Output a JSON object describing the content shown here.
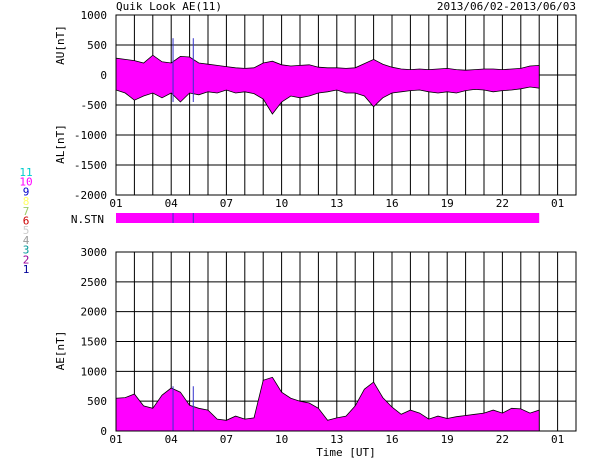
{
  "header": {
    "title": "Quik Look AE(11)",
    "date_range": "2013/06/02-2013/06/03"
  },
  "colors": {
    "fill": "#ff00ff",
    "marker": "#3333cc",
    "grid": "#000000"
  },
  "station_labels": [
    {
      "text": "11",
      "color": "#00cccc"
    },
    {
      "text": "10",
      "color": "#ff00ff"
    },
    {
      "text": "9",
      "color": "#0000cc"
    },
    {
      "text": "8",
      "color": "#ffff66"
    },
    {
      "text": "7",
      "color": "#99cc66"
    },
    {
      "text": "6",
      "color": "#cc0000"
    },
    {
      "text": "5",
      "color": "#cccccc"
    },
    {
      "text": "4",
      "color": "#999999"
    },
    {
      "text": "3",
      "color": "#009999"
    },
    {
      "text": "2",
      "color": "#990099"
    },
    {
      "text": "1",
      "color": "#000099"
    }
  ],
  "nstn": {
    "label": "N.STN",
    "coverage_hours": [
      0,
      23
    ],
    "markers_hours": [
      3.1,
      4.2
    ]
  },
  "chart_data": [
    {
      "type": "area",
      "panel": "AU/AL",
      "ylabel_upper": "AU[nT]",
      "ylabel_lower": "AL[nT]",
      "ylim": [
        -2000,
        1000
      ],
      "yticks": [
        1000,
        500,
        0,
        -500,
        -1000,
        -1500,
        -2000
      ],
      "xlim": [
        0,
        25
      ],
      "xticks": [
        0,
        3,
        6,
        9,
        12,
        15,
        18,
        21,
        24
      ],
      "xticklabels": [
        "01",
        "04",
        "07",
        "10",
        "13",
        "16",
        "19",
        "22",
        "01"
      ],
      "grid": true,
      "x_hours": [
        0,
        0.5,
        1,
        1.5,
        2,
        2.5,
        3,
        3.5,
        4,
        4.5,
        5,
        5.5,
        6,
        6.5,
        7,
        7.5,
        8,
        8.5,
        9,
        9.5,
        10,
        10.5,
        11,
        11.5,
        12,
        12.5,
        13,
        13.5,
        14,
        14.5,
        15,
        15.5,
        16,
        16.5,
        17,
        17.5,
        18,
        18.5,
        19,
        19.5,
        20,
        20.5,
        21,
        21.5,
        22,
        22.5,
        23
      ],
      "au": [
        280,
        260,
        240,
        200,
        330,
        220,
        200,
        310,
        300,
        200,
        180,
        160,
        140,
        120,
        110,
        120,
        200,
        230,
        170,
        150,
        160,
        170,
        130,
        120,
        120,
        110,
        120,
        190,
        260,
        180,
        130,
        100,
        90,
        100,
        90,
        100,
        110,
        90,
        80,
        90,
        100,
        100,
        90,
        100,
        110,
        150,
        160
      ],
      "al": [
        -250,
        -300,
        -420,
        -350,
        -300,
        -380,
        -300,
        -450,
        -300,
        -330,
        -280,
        -300,
        -250,
        -300,
        -280,
        -310,
        -400,
        -650,
        -450,
        -350,
        -380,
        -350,
        -300,
        -280,
        -250,
        -300,
        -300,
        -350,
        -530,
        -380,
        -300,
        -280,
        -260,
        -250,
        -280,
        -300,
        -280,
        -300,
        -260,
        -240,
        -250,
        -280,
        -260,
        -250,
        -230,
        -200,
        -220
      ],
      "markers_hours": [
        3.1,
        4.2
      ]
    },
    {
      "type": "area",
      "panel": "AE",
      "ylabel": "AE[nT]",
      "xlabel": "Time [UT]",
      "ylim": [
        0,
        3000
      ],
      "yticks": [
        3000,
        2500,
        2000,
        1500,
        1000,
        500,
        0
      ],
      "xlim": [
        0,
        25
      ],
      "xticks": [
        0,
        3,
        6,
        9,
        12,
        15,
        18,
        21,
        24
      ],
      "xticklabels": [
        "01",
        "04",
        "07",
        "10",
        "13",
        "16",
        "19",
        "22",
        "01"
      ],
      "grid": true,
      "x_hours": [
        0,
        0.5,
        1,
        1.5,
        2,
        2.5,
        3,
        3.5,
        4,
        4.5,
        5,
        5.5,
        6,
        6.5,
        7,
        7.5,
        8,
        8.5,
        9,
        9.5,
        10,
        10.5,
        11,
        11.5,
        12,
        12.5,
        13,
        13.5,
        14,
        14.5,
        15,
        15.5,
        16,
        16.5,
        17,
        17.5,
        18,
        18.5,
        19,
        19.5,
        20,
        20.5,
        21,
        21.5,
        22,
        22.5,
        23
      ],
      "ae": [
        550,
        560,
        620,
        420,
        380,
        600,
        720,
        650,
        430,
        380,
        350,
        200,
        180,
        250,
        200,
        220,
        850,
        900,
        650,
        550,
        500,
        470,
        380,
        180,
        220,
        250,
        420,
        700,
        820,
        560,
        400,
        280,
        350,
        300,
        200,
        250,
        210,
        240,
        260,
        280,
        300,
        350,
        300,
        380,
        370,
        300,
        350
      ],
      "markers_hours": [
        3.1,
        4.2
      ]
    }
  ]
}
